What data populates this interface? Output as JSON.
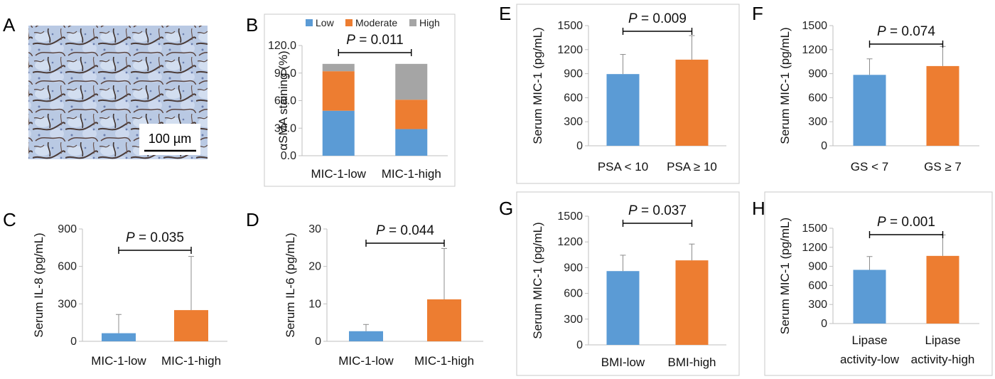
{
  "micrograph": {
    "letter": "A",
    "scale_bar_label": "100 µm"
  },
  "colors": {
    "blue": "#5b9bd5",
    "orange": "#ed7d31",
    "gray": "#a5a5a5"
  },
  "chart_data": [
    {
      "id": "B",
      "type": "bar",
      "stacked": true,
      "letter": "B",
      "categories": [
        "MIC-1-low",
        "MIC-1-high"
      ],
      "series": [
        {
          "name": "Low",
          "color": "#5b9bd5",
          "values": [
            49,
            29
          ]
        },
        {
          "name": "Moderate",
          "color": "#ed7d31",
          "values": [
            43,
            32
          ]
        },
        {
          "name": "High",
          "color": "#a5a5a5",
          "values": [
            8,
            39
          ]
        }
      ],
      "ylabel": "αSMA staining (%)",
      "ylim": [
        0,
        120
      ],
      "yticks": [
        "0.0",
        "30.0",
        "60.0",
        "90.0",
        "120.0"
      ],
      "pvalue": {
        "label": "P",
        "text": " = 0.011"
      },
      "legend": "top",
      "framed": true
    },
    {
      "id": "C",
      "type": "bar",
      "letter": "C",
      "categories": [
        "MIC-1-low",
        "MIC-1-high"
      ],
      "values": [
        65,
        250
      ],
      "errors": [
        150,
        430
      ],
      "ylabel": "Serum IL-8 (pg/mL)",
      "ylim": [
        0,
        900
      ],
      "yticks": [
        "0",
        "300",
        "600",
        "900"
      ],
      "pvalue": {
        "label": "P",
        "text": " = 0.035"
      },
      "framed": false
    },
    {
      "id": "D",
      "type": "bar",
      "letter": "D",
      "categories": [
        "MIC-1-low",
        "MIC-1-high"
      ],
      "values": [
        2.7,
        11.2
      ],
      "errors": [
        1.8,
        13.6
      ],
      "ylabel": "Serum IL-6 (pg/mL)",
      "ylim": [
        0,
        30
      ],
      "yticks": [
        "0",
        "10",
        "20",
        "30"
      ],
      "pvalue": {
        "label": "P",
        "text": " = 0.044"
      },
      "framed": false
    },
    {
      "id": "E",
      "type": "bar",
      "letter": "E",
      "categories": [
        "PSA < 10",
        "PSA ≥ 10"
      ],
      "values": [
        895,
        1075
      ],
      "errors": [
        245,
        300
      ],
      "ylabel": "Serum MIC-1 (pg/mL)",
      "ylim": [
        0,
        1500
      ],
      "yticks": [
        "0",
        "300",
        "600",
        "900",
        "1200",
        "1500"
      ],
      "pvalue": {
        "label": "P",
        "text": " = 0.009"
      },
      "framed": true
    },
    {
      "id": "F",
      "type": "bar",
      "letter": "F",
      "categories": [
        "GS < 7",
        "GS ≥ 7"
      ],
      "values": [
        885,
        995
      ],
      "errors": [
        200,
        245
      ],
      "ylabel": "Serum MIC-1 (pg/mL)",
      "ylim": [
        0,
        1500
      ],
      "yticks": [
        "0",
        "300",
        "600",
        "900",
        "1200",
        "1500"
      ],
      "pvalue": {
        "label": "P",
        "text": " = 0.074"
      },
      "framed": false
    },
    {
      "id": "G",
      "type": "bar",
      "letter": "G",
      "categories": [
        "BMI-low",
        "BMI-high"
      ],
      "values": [
        860,
        985
      ],
      "errors": [
        185,
        190
      ],
      "ylabel": "Serum MIC-1 (pg/mL)",
      "ylim": [
        0,
        1500
      ],
      "yticks": [
        "0",
        "300",
        "600",
        "900",
        "1200",
        "1500"
      ],
      "pvalue": {
        "label": "P",
        "text": " = 0.037"
      },
      "framed": true
    },
    {
      "id": "H",
      "type": "bar",
      "letter": "H",
      "categories": [
        "Lipase activity-low",
        "Lipase activity-high"
      ],
      "category_lines": [
        [
          "Lipase",
          "activity-low"
        ],
        [
          "Lipase",
          "activity-high"
        ]
      ],
      "values": [
        845,
        1065
      ],
      "errors": [
        210,
        330
      ],
      "ylabel": "Serum MIC-1 (pg/mL)",
      "ylim": [
        0,
        1500
      ],
      "yticks": [
        "0",
        "300",
        "600",
        "900",
        "1200",
        "1500"
      ],
      "pvalue": {
        "label": "P",
        "text": " = 0.001"
      },
      "framed": true
    }
  ]
}
